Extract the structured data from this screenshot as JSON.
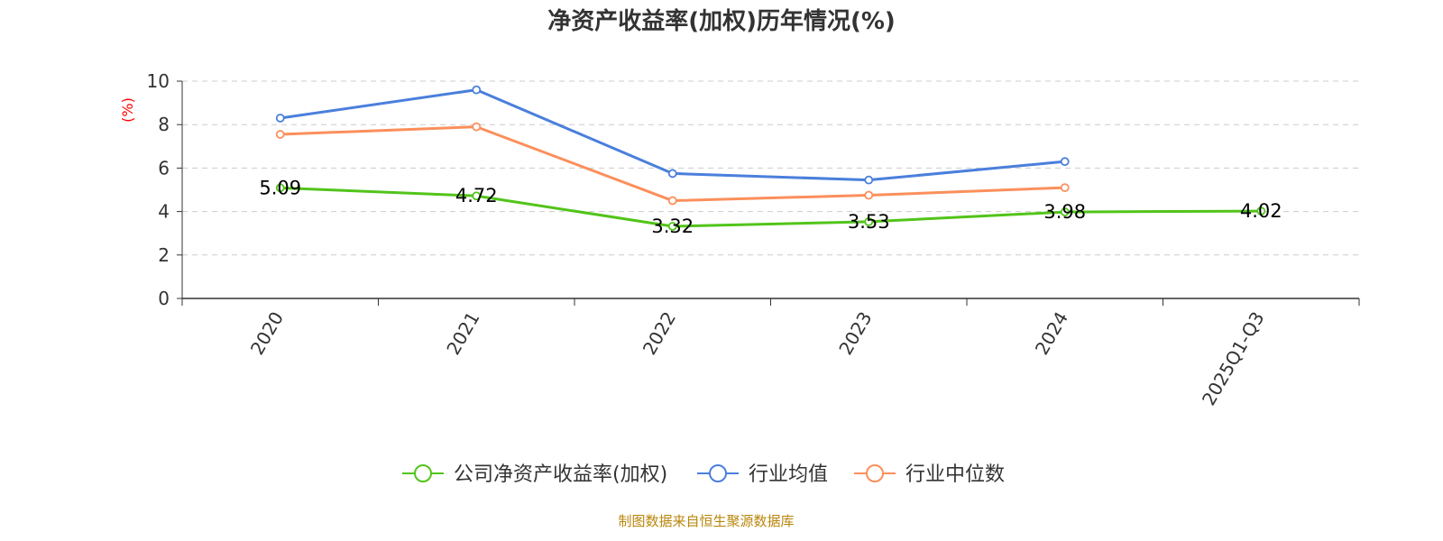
{
  "chart_data": {
    "type": "line",
    "title": "净资产收益率(加权)历年情况(%)",
    "ylabel": "(%)",
    "xlabel": "",
    "categories": [
      "2020",
      "2021",
      "2022",
      "2023",
      "2024",
      "2025Q1-Q3"
    ],
    "ylim": [
      0,
      10
    ],
    "yticks": [
      0,
      2,
      4,
      6,
      8,
      10
    ],
    "grid": true,
    "legend_position": "bottom-center",
    "series": [
      {
        "name": "公司净资产收益率(加权)",
        "color": "#52c41a",
        "values": [
          5.09,
          4.72,
          3.32,
          3.53,
          3.98,
          4.02
        ],
        "data_labels": [
          "5.09",
          "4.72",
          "3.32",
          "3.53",
          "3.98",
          "4.02"
        ]
      },
      {
        "name": "行业均值",
        "color": "#4a7fdc",
        "values": [
          8.3,
          9.6,
          5.75,
          5.45,
          6.3,
          null
        ]
      },
      {
        "name": "行业中位数",
        "color": "#fb8f5b",
        "values": [
          7.55,
          7.9,
          4.5,
          4.75,
          5.1,
          null
        ]
      }
    ]
  },
  "source": "制图数据来自恒生聚源数据库",
  "colors": {
    "ylabel": "#ff0000",
    "source": "#b8860b",
    "axis": "#333333",
    "grid": "#cccccc"
  }
}
